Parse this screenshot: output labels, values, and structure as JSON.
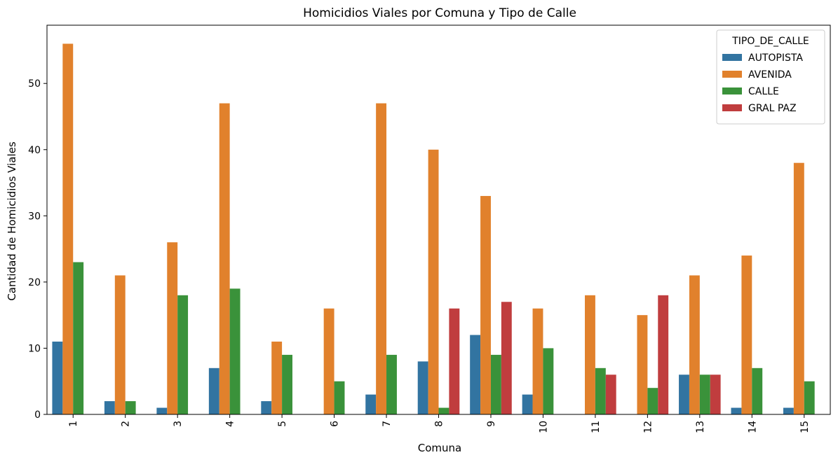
{
  "chart_data": {
    "type": "bar",
    "title": "Homicidios Viales por Comuna y Tipo de Calle",
    "xlabel": "Comuna",
    "ylabel": "Cantidad de Homicidios Viales",
    "ylim": [
      0,
      58.8
    ],
    "yticks": [
      0,
      10,
      20,
      30,
      40,
      50
    ],
    "categories": [
      "1",
      "2",
      "3",
      "4",
      "5",
      "6",
      "7",
      "8",
      "9",
      "10",
      "11",
      "12",
      "13",
      "14",
      "15"
    ],
    "grid": false,
    "legend": {
      "title": "TIPO_DE_CALLE",
      "placement": "top-right"
    },
    "series": [
      {
        "name": "AUTOPISTA",
        "color": "#3274a1",
        "values": [
          11,
          2,
          1,
          7,
          2,
          0,
          3,
          8,
          12,
          3,
          0,
          0,
          6,
          1,
          1
        ]
      },
      {
        "name": "AVENIDA",
        "color": "#e1812c",
        "values": [
          56,
          21,
          26,
          47,
          11,
          16,
          47,
          40,
          33,
          16,
          18,
          15,
          21,
          24,
          38
        ]
      },
      {
        "name": "CALLE",
        "color": "#3a923a",
        "values": [
          23,
          2,
          18,
          19,
          9,
          5,
          9,
          1,
          9,
          10,
          7,
          4,
          6,
          7,
          5
        ]
      },
      {
        "name": "GRAL PAZ",
        "color": "#c03d3e",
        "values": [
          0,
          0,
          0,
          0,
          0,
          0,
          0,
          16,
          17,
          0,
          6,
          18,
          6,
          0,
          0
        ]
      }
    ]
  }
}
